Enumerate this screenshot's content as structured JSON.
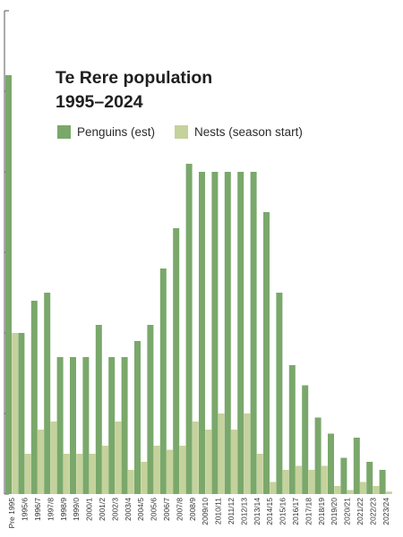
{
  "chart_data": {
    "type": "bar",
    "title_lines": [
      "Te Rere population",
      "1995–2024"
    ],
    "ylim": [
      0,
      600
    ],
    "grid": false,
    "legend_position": "top-left",
    "categories": [
      "Pre 1995",
      "1995/6",
      "1996/7",
      "1997/8",
      "1998/9",
      "1999/0",
      "2000/1",
      "2001/2",
      "2002/3",
      "2003/4",
      "2004/5",
      "2005/6",
      "2006/7",
      "2007/8",
      "2008/9",
      "2009/10",
      "2010/11",
      "2011/12",
      "2012/13",
      "2013/14",
      "2014/15",
      "2015/16",
      "2016/17",
      "2017/18",
      "2018/19",
      "2019/20",
      "2020/21",
      "2021/22",
      "2022/23",
      "2023/24"
    ],
    "series": [
      {
        "name": "Penguins (est)",
        "color": "#7aa86b",
        "values": [
          520,
          200,
          240,
          250,
          170,
          170,
          170,
          210,
          170,
          170,
          190,
          210,
          280,
          330,
          410,
          400,
          400,
          400,
          400,
          400,
          350,
          250,
          160,
          135,
          95,
          75,
          45,
          70,
          40,
          30
        ]
      },
      {
        "name": "Nests (season start)",
        "color": "#c5d29c",
        "values": [
          200,
          50,
          80,
          90,
          50,
          50,
          50,
          60,
          90,
          30,
          40,
          60,
          55,
          60,
          90,
          80,
          100,
          80,
          100,
          50,
          15,
          30,
          35,
          30,
          35,
          10,
          5,
          15,
          10,
          3
        ]
      }
    ]
  }
}
